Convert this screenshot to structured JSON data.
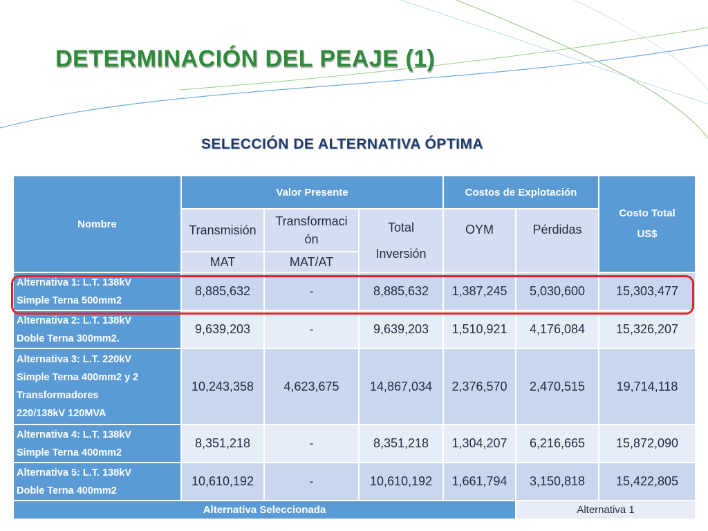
{
  "slide": {
    "title": "DETERMINACIÓN DEL PEAJE (1)",
    "subtitle": "SELECCIÓN DE ALTERNATIVA ÓPTIMA",
    "colors": {
      "title": "#2e8b3a",
      "subtitle": "#1f3b6e",
      "header_blue": "#5b9bd5",
      "cell_dark": "#c9d7ee",
      "cell_light": "#e7edf7",
      "highlight": "#e0262b"
    }
  },
  "table": {
    "headers": {
      "nombre": "Nombre",
      "valor_presente": "Valor Presente",
      "costos_explotacion": "Costos de Explotación",
      "costo_total_1": "Costo Total",
      "costo_total_2": "US$",
      "transmision": "Transmisión",
      "transformacion_1": "Transformaci",
      "transformacion_2": "ón",
      "total_inversion_1": "Total",
      "total_inversion_2": "Inversión",
      "oym": "OYM",
      "perdidas": "Pérdidas",
      "mat": "MAT",
      "mat_at": "MAT/AT"
    },
    "rows": [
      {
        "name_lines": [
          "Alternativa 1: L.T. 138kV",
          "Simple Terna 500mm2"
        ],
        "transmision": "8,885,632",
        "transformacion": "-",
        "total_inversion": "8,885,632",
        "oym": "1,387,245",
        "perdidas": "5,030,600",
        "costo_total": "15,303,477"
      },
      {
        "name_lines": [
          "Alternativa 2: L.T. 138kV",
          "Doble Terna 300mm2."
        ],
        "transmision": "9,639,203",
        "transformacion": "-",
        "total_inversion": "9,639,203",
        "oym": "1,510,921",
        "perdidas": "4,176,084",
        "costo_total": "15,326,207"
      },
      {
        "name_lines": [
          "Alternativa 3: L.T. 220kV",
          "Simple Terna 400mm2 y 2",
          "Transformadores",
          "220/138kV 120MVA"
        ],
        "transmision": "10,243,358",
        "transformacion": "4,623,675",
        "total_inversion": "14,867,034",
        "oym": "2,376,570",
        "perdidas": "2,470,515",
        "costo_total": "19,714,118"
      },
      {
        "name_lines": [
          "Alternativa 4: L.T. 138kV",
          "Simple Terna 400mm2"
        ],
        "transmision": "8,351,218",
        "transformacion": "-",
        "total_inversion": "8,351,218",
        "oym": "1,304,207",
        "perdidas": "6,216,665",
        "costo_total": "15,872,090"
      },
      {
        "name_lines": [
          "Alternativa 5: L.T. 138kV",
          "Doble Terna 400mm2"
        ],
        "transmision": "10,610,192",
        "transformacion": "-",
        "total_inversion": "10,610,192",
        "oym": "1,661,794",
        "perdidas": "3,150,818",
        "costo_total": "15,422,805"
      }
    ],
    "footer": {
      "label": "Alternativa Seleccionada",
      "value": "Alternativa 1"
    }
  }
}
